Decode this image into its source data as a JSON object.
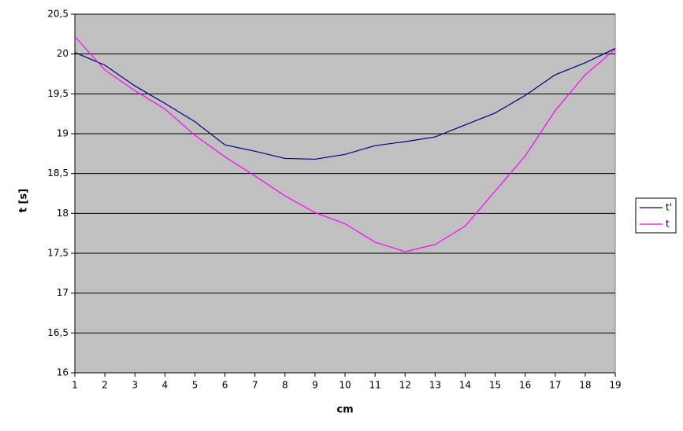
{
  "chart_data": {
    "type": "line",
    "x_label": "cm",
    "y_label": "t [s]",
    "x": [
      1,
      2,
      3,
      4,
      5,
      6,
      7,
      8,
      9,
      10,
      11,
      12,
      13,
      14,
      15,
      16,
      17,
      18,
      19
    ],
    "series": [
      {
        "name": "t'",
        "color": "#000080",
        "values": [
          20.02,
          19.86,
          19.6,
          19.38,
          19.15,
          18.86,
          18.78,
          18.69,
          18.68,
          18.74,
          18.85,
          18.9,
          18.96,
          19.11,
          19.26,
          19.48,
          19.74,
          19.89,
          20.07
        ]
      },
      {
        "name": "t",
        "color": "#ff00ff",
        "values": [
          20.22,
          19.8,
          19.54,
          19.31,
          18.98,
          18.71,
          18.47,
          18.22,
          18.01,
          17.87,
          17.64,
          17.52,
          17.61,
          17.84,
          18.28,
          18.72,
          19.29,
          19.74,
          20.06
        ]
      }
    ],
    "xlim": [
      1,
      19
    ],
    "xticks": [
      1,
      2,
      3,
      4,
      5,
      6,
      7,
      8,
      9,
      10,
      11,
      12,
      13,
      14,
      15,
      16,
      17,
      18,
      19
    ],
    "ylim": [
      16,
      20.5
    ],
    "yticks": [
      16,
      {
        "value": 16.5,
        "label": "16,5"
      },
      17,
      {
        "value": 17.5,
        "label": "17,5"
      },
      18,
      {
        "value": 18.5,
        "label": "18,5"
      },
      19,
      {
        "value": 19.5,
        "label": "19,5"
      },
      20,
      {
        "value": 20.5,
        "label": "20,5"
      }
    ],
    "grid": true,
    "legend": "right",
    "background": "#c0c0c0"
  }
}
